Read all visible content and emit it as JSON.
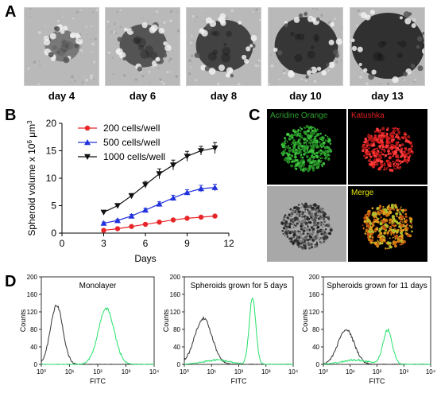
{
  "panel_letters": {
    "a": "A",
    "b": "B",
    "c": "C",
    "d": "D"
  },
  "micrographs": [
    {
      "label": "day 4",
      "spheroid_size": 0.22,
      "darkness": 0.25
    },
    {
      "label": "day 6",
      "spheroid_size": 0.3,
      "darkness": 0.55
    },
    {
      "label": "day 8",
      "spheroid_size": 0.36,
      "darkness": 0.7
    },
    {
      "label": "day 10",
      "spheroid_size": 0.4,
      "darkness": 0.8
    },
    {
      "label": "day 13",
      "spheroid_size": 0.46,
      "darkness": 0.85
    }
  ],
  "confocal": {
    "acridine": "Acridine Orange",
    "katushka": "Katushka",
    "merge": "Merge",
    "colors": {
      "green": "#2fa02f",
      "red": "#e02020",
      "yellow": "#e6e600"
    }
  },
  "chart_data": [
    {
      "type": "line",
      "xlabel": "Days",
      "ylabel": "Spheroid volume x 10",
      "ylabel_exponent": "6",
      "ylabel_unit": " μm",
      "ylabel_unit_exponent": "3",
      "xlim": [
        0,
        12
      ],
      "ylim": [
        0,
        20
      ],
      "xticks": [
        "0",
        "3",
        "6",
        "9",
        "12"
      ],
      "yticks": [
        "0",
        "5",
        "10",
        "15",
        "20"
      ],
      "grid": false,
      "legend_position": "top-left",
      "series": [
        {
          "name": "200 cells/well",
          "color": "#e8262a",
          "marker": "circle",
          "x": [
            3,
            4,
            5,
            6,
            7,
            8,
            9,
            10,
            11
          ],
          "y": [
            0.5,
            0.8,
            1.2,
            1.6,
            2.0,
            2.4,
            2.7,
            2.9,
            3.1
          ],
          "err": [
            0.1,
            0.1,
            0.15,
            0.15,
            0.2,
            0.2,
            0.2,
            0.2,
            0.2
          ]
        },
        {
          "name": "500 cells/well",
          "color": "#2233dd",
          "marker": "triangle-up",
          "x": [
            3,
            4,
            5,
            6,
            7,
            8,
            9,
            10,
            11
          ],
          "y": [
            1.8,
            2.3,
            3.1,
            4.2,
            5.3,
            6.4,
            7.4,
            8.1,
            8.3
          ],
          "err": [
            0.2,
            0.2,
            0.3,
            0.3,
            0.4,
            0.5,
            0.5,
            0.6,
            0.6
          ]
        },
        {
          "name": "1000 cells/well",
          "color": "#111111",
          "marker": "triangle-down",
          "x": [
            3,
            4,
            5,
            6,
            7,
            8,
            9,
            10,
            11
          ],
          "y": [
            3.8,
            5.0,
            6.8,
            8.8,
            10.8,
            12.4,
            14.0,
            15.0,
            15.5
          ],
          "err": [
            0.3,
            0.3,
            0.4,
            0.6,
            0.9,
            0.9,
            0.9,
            0.8,
            1.0
          ]
        }
      ]
    },
    {
      "type": "line",
      "title": "Monolayer",
      "xlabel": "FITC",
      "ylabel": "Counts",
      "xscale": "log",
      "xlim": [
        1,
        10000
      ],
      "ylim": [
        0,
        200
      ],
      "xticks": [
        "10⁰",
        "10¹",
        "10²",
        "10³",
        "10⁴"
      ],
      "yticks": [
        "0",
        "40",
        "80",
        "120",
        "160",
        "200"
      ],
      "series": [
        {
          "color": "#333333",
          "peak_x": 3.5,
          "peak_y": 135,
          "width_decades": 0.22
        },
        {
          "color": "#26e06a",
          "peak_x": 200,
          "peak_y": 128,
          "width_decades": 0.28
        }
      ]
    },
    {
      "type": "line",
      "title": "Spheroids grown for 5 days",
      "xlabel": "FITC",
      "ylabel": "Counts",
      "xscale": "log",
      "xlim": [
        1,
        10000
      ],
      "ylim": [
        0,
        200
      ],
      "xticks": [
        "10⁰",
        "10¹",
        "10²",
        "10³",
        "10⁴"
      ],
      "yticks": [
        "0",
        "40",
        "80",
        "120",
        "160",
        "200"
      ],
      "series": [
        {
          "color": "#333333",
          "peak_x": 5,
          "peak_y": 105,
          "width_decades": 0.32
        },
        {
          "color": "#26e06a",
          "peak_x": 320,
          "peak_y": 152,
          "width_decades": 0.12,
          "baseline": 10
        }
      ]
    },
    {
      "type": "line",
      "title": "Spheroids grown for 11 days",
      "xlabel": "FITC",
      "ylabel": "Counts",
      "xscale": "log",
      "xlim": [
        1,
        10000
      ],
      "ylim": [
        0,
        200
      ],
      "xticks": [
        "10⁰",
        "10¹",
        "10²",
        "10³",
        "10⁴"
      ],
      "yticks": [
        "0",
        "40",
        "80",
        "120",
        "160",
        "200"
      ],
      "series": [
        {
          "color": "#333333",
          "peak_x": 7,
          "peak_y": 80,
          "width_decades": 0.3
        },
        {
          "color": "#26e06a",
          "peak_x": 250,
          "peak_y": 78,
          "width_decades": 0.17,
          "baseline": 10
        }
      ]
    }
  ]
}
